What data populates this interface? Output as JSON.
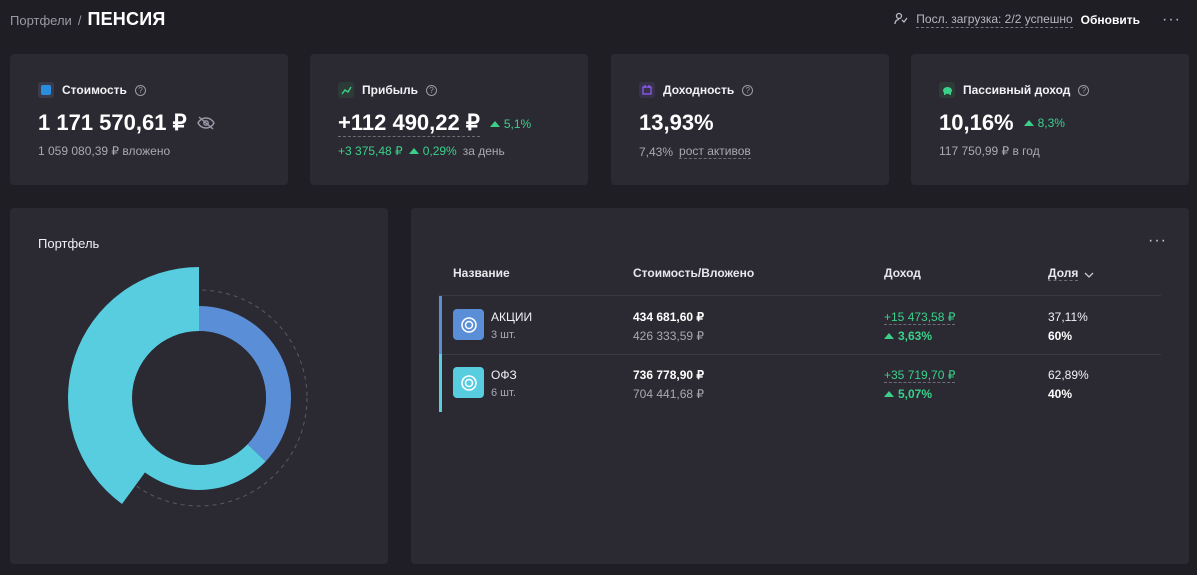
{
  "breadcrumb": {
    "parent": "Портфели",
    "separator": "/",
    "title": "ПЕНСИЯ"
  },
  "topbar": {
    "status": "Посл. загрузка: 2/2 успешно",
    "refresh": "Обновить",
    "more": "···"
  },
  "kpis": {
    "value": {
      "label": "Стоимость",
      "main": "1 171 570,61 ₽",
      "sub": "1 059 080,39 ₽ вложено",
      "icon": "wallet-icon",
      "color": "#2a8dde"
    },
    "profit": {
      "label": "Прибыль",
      "main": "+112 490,22 ₽",
      "change": "5,1%",
      "sub_value": "+3 375,48 ₽",
      "sub_change": "0,29%",
      "sub_suffix": "за день",
      "icon": "chart-icon",
      "color": "#3ad08a"
    },
    "yield": {
      "label": "Доходность",
      "main": "13,93%",
      "sub_value": "7,43%",
      "sub_link": "рост активов",
      "icon": "calendar-icon",
      "color": "#8b5cf6"
    },
    "passive": {
      "label": "Пассивный доход",
      "main": "10,16%",
      "change": "8,3%",
      "sub": "117 750,99 ₽ в год",
      "icon": "piggy-bank-icon",
      "color": "#3ad08a"
    }
  },
  "portfolio": {
    "title": "Портфель",
    "inner_ring_fraction": 0.3711,
    "outer_ring_fraction": 0.6,
    "colors": {
      "stocks": "#5a8fd8",
      "bonds": "#58cde0"
    }
  },
  "table": {
    "headers": {
      "name": "Название",
      "value": "Стоимость/Вложено",
      "income": "Доход",
      "share": "Доля"
    },
    "rows": [
      {
        "name": "АКЦИИ",
        "count": "3 шт.",
        "value": "434 681,60 ₽",
        "invested": "426 333,59 ₽",
        "income": "+15 473,58 ₽",
        "income_pct": "3,63%",
        "share": "37,11%",
        "target": "60%",
        "color": "#5a8fd8"
      },
      {
        "name": "ОФЗ",
        "count": "6 шт.",
        "value": "736 778,90 ₽",
        "invested": "704 441,68 ₽",
        "income": "+35 719,70 ₽",
        "income_pct": "5,07%",
        "share": "62,89%",
        "target": "40%",
        "color": "#58cde0"
      }
    ],
    "more": "···"
  }
}
